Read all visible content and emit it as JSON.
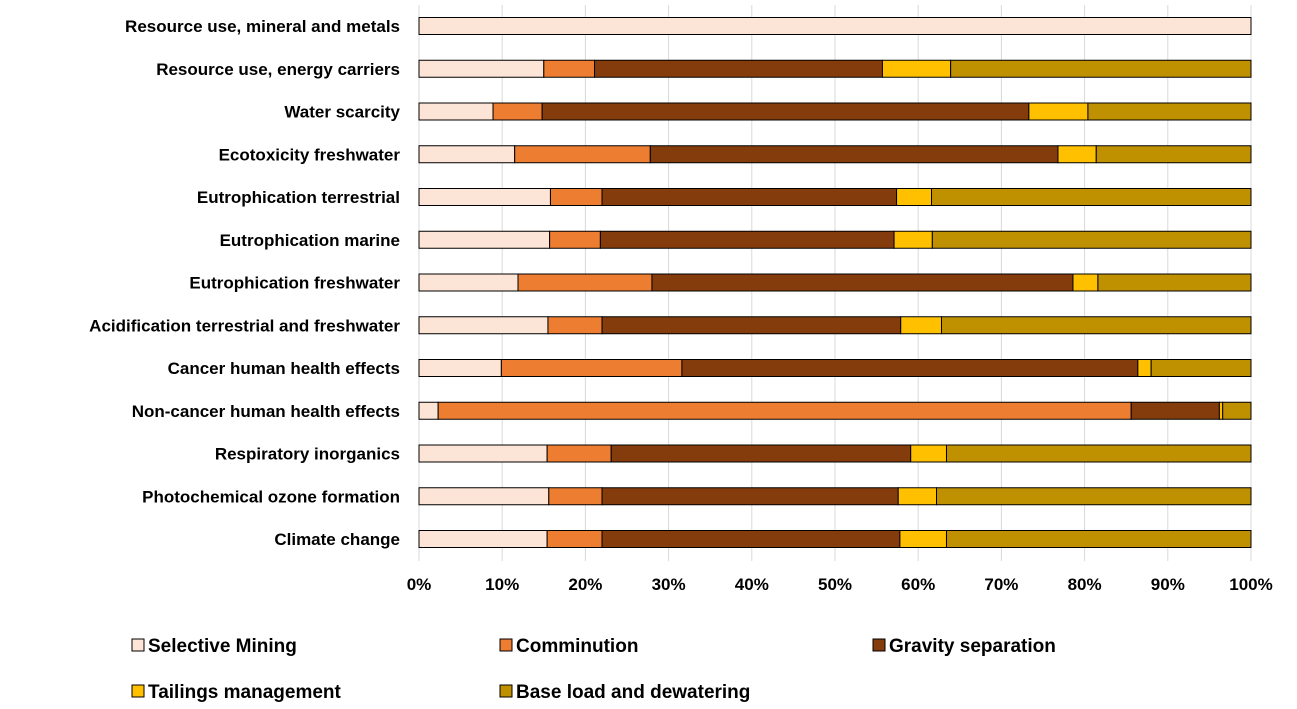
{
  "chart_data": {
    "type": "bar",
    "orientation": "horizontal",
    "stacked": "percent",
    "categories": [
      "Resource use, mineral and metals",
      "Resource use, energy carriers",
      "Water scarcity",
      "Ecotoxicity freshwater",
      "Eutrophication terrestrial",
      "Eutrophication marine",
      "Eutrophication freshwater",
      "Acidification terrestrial and freshwater",
      "Cancer human health effects",
      "Non-cancer human health effects",
      "Respiratory inorganics",
      "Photochemical ozone formation",
      "Climate change"
    ],
    "series": [
      {
        "name": "Selective Mining",
        "color": "#fce4d6",
        "values": [
          100,
          15.0,
          8.9,
          11.5,
          15.8,
          15.7,
          11.9,
          15.5,
          9.9,
          2.3,
          15.4,
          15.6,
          15.4
        ]
      },
      {
        "name": "Comminution",
        "color": "#ed7d31",
        "values": [
          0,
          6.1,
          5.9,
          16.3,
          6.2,
          6.1,
          16.1,
          6.5,
          21.7,
          83.3,
          7.7,
          6.4,
          6.6
        ]
      },
      {
        "name": "Gravity separation",
        "color": "#843c0c",
        "values": [
          0,
          34.6,
          58.5,
          49.0,
          35.4,
          35.3,
          50.6,
          35.9,
          54.8,
          10.6,
          36.0,
          35.6,
          35.8
        ]
      },
      {
        "name": "Tailings management",
        "color": "#ffc000",
        "values": [
          0,
          8.2,
          7.1,
          4.6,
          4.2,
          4.6,
          3.0,
          4.9,
          1.6,
          0.4,
          4.3,
          4.6,
          5.6
        ]
      },
      {
        "name": "Base load and dewatering",
        "color": "#bf9000",
        "values": [
          0,
          36.1,
          19.6,
          18.6,
          38.4,
          38.3,
          18.4,
          37.2,
          12.0,
          3.4,
          36.6,
          37.8,
          36.6
        ]
      }
    ],
    "xticks": [
      "0%",
      "10%",
      "20%",
      "30%",
      "40%",
      "50%",
      "60%",
      "70%",
      "80%",
      "90%",
      "100%"
    ],
    "xlim": [
      0,
      100
    ],
    "grid": "vertical",
    "legend_position": "bottom",
    "title": "",
    "xlabel": "",
    "ylabel": ""
  }
}
